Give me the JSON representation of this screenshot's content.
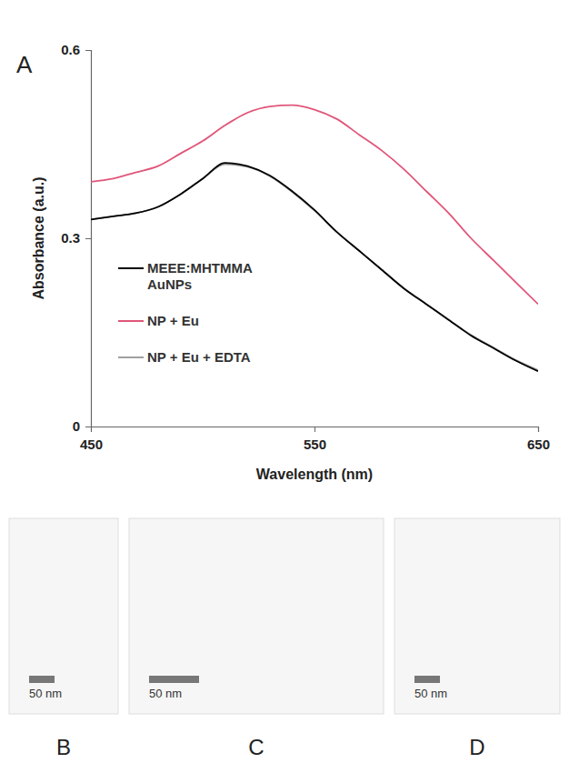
{
  "chart_data": {
    "type": "line",
    "panel_label": "A",
    "x_label": "Wavelength (nm)",
    "y_label": "Absorbance (a.u.)",
    "x": [
      450,
      460,
      470,
      480,
      490,
      500,
      510,
      520,
      530,
      540,
      550,
      560,
      570,
      580,
      590,
      600,
      610,
      620,
      630,
      640,
      650
    ],
    "series": [
      {
        "name": "MEEE:MHTMMA AuNPs",
        "color": "#000000",
        "values": [
          0.33,
          0.335,
          0.34,
          0.35,
          0.37,
          0.395,
          0.42,
          0.415,
          0.4,
          0.375,
          0.345,
          0.31,
          0.28,
          0.25,
          0.22,
          0.195,
          0.17,
          0.145,
          0.125,
          0.105,
          0.088
        ]
      },
      {
        "name": "NP + Eu",
        "color": "#e0567a",
        "values": [
          0.39,
          0.395,
          0.405,
          0.415,
          0.435,
          0.455,
          0.48,
          0.5,
          0.51,
          0.512,
          0.505,
          0.49,
          0.465,
          0.44,
          0.41,
          0.375,
          0.34,
          0.3,
          0.265,
          0.23,
          0.195
        ]
      },
      {
        "name": "NP + Eu + EDTA",
        "color": "#a0a0a0",
        "values": [
          0.33,
          0.335,
          0.34,
          0.35,
          0.37,
          0.395,
          0.418,
          0.414,
          0.399,
          0.374,
          0.344,
          0.31,
          0.28,
          0.25,
          0.22,
          0.195,
          0.17,
          0.146,
          0.126,
          0.106,
          0.09
        ]
      }
    ],
    "xlim": [
      450,
      650
    ],
    "xticks": [
      450,
      550,
      650
    ],
    "ylim": [
      0,
      0.6
    ],
    "yticks": [
      0,
      0.3,
      0.6
    ],
    "legend": "left",
    "grid": false
  },
  "images": [
    {
      "label": "B",
      "scale_bar": "50 nm"
    },
    {
      "label": "C",
      "scale_bar": "50 nm"
    },
    {
      "label": "D",
      "scale_bar": "50 nm"
    }
  ]
}
